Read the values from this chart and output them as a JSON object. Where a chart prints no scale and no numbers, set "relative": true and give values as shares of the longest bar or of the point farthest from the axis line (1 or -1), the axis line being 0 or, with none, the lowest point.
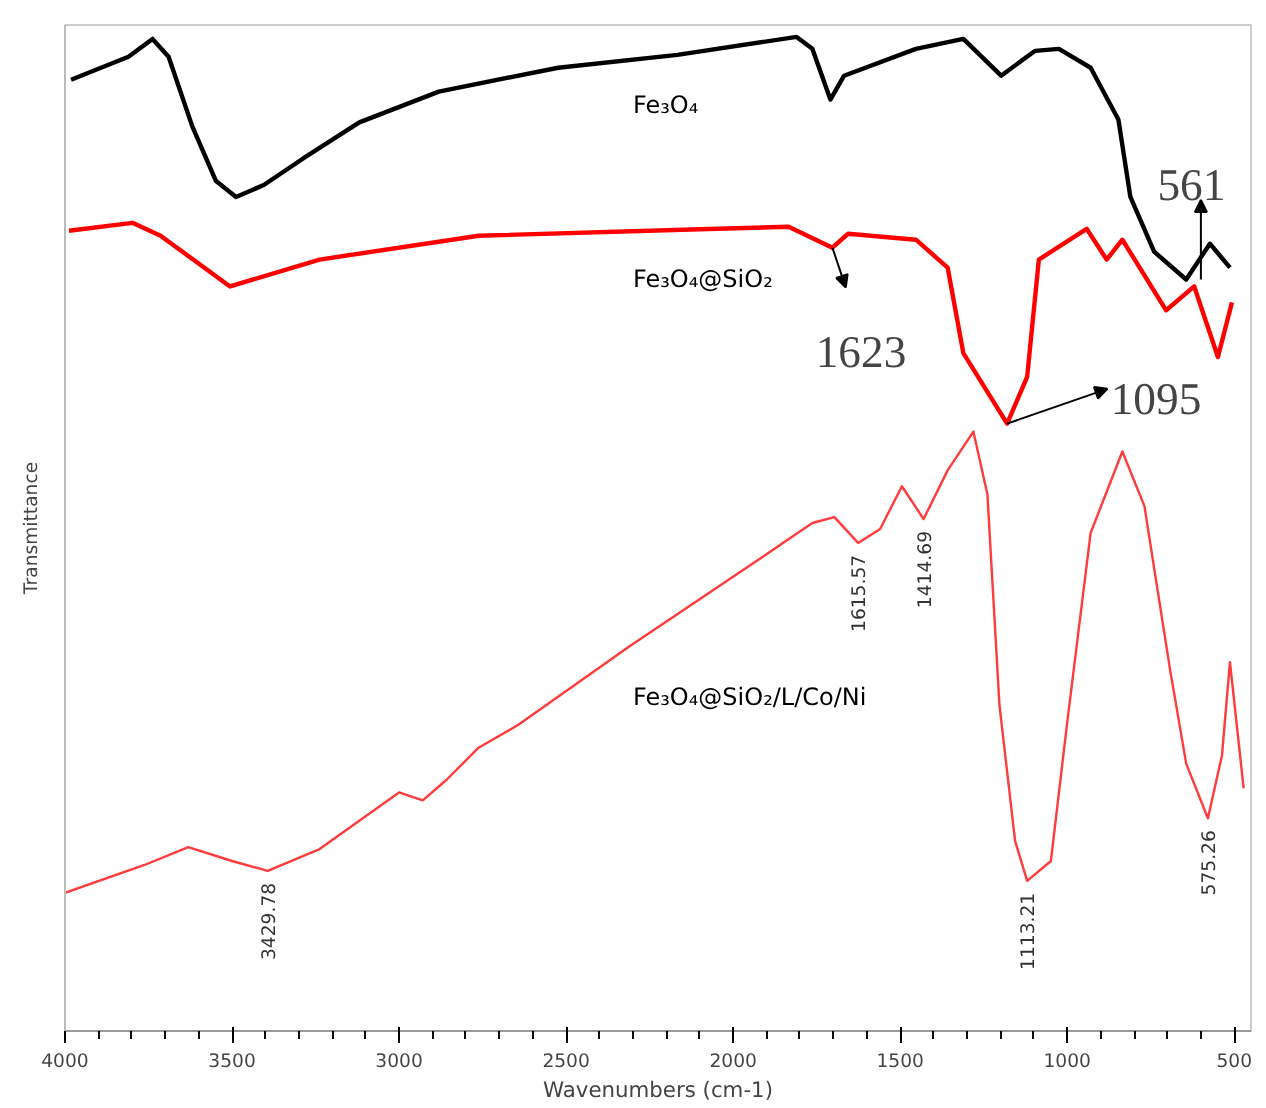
{
  "chart_data": {
    "type": "line",
    "xlabel": "Wavenumbers (cm-1)",
    "ylabel": "Transmittance",
    "relative": true,
    "grid": false,
    "xlim": [
      4000,
      450
    ],
    "xticks": [
      4000,
      3500,
      3000,
      2500,
      2000,
      1500,
      1000,
      500
    ],
    "series": [
      {
        "name": "Fe₃O₄",
        "color": "#000000",
        "x": [
          3982,
          3810,
          3738,
          3690,
          3619,
          3548,
          3488,
          3405,
          3286,
          3119,
          2881,
          2524,
          2167,
          1810,
          1763,
          1709,
          1668,
          1453,
          1311,
          1198,
          1096,
          1025,
          930,
          847,
          811,
          740,
          644,
          573,
          513
        ],
        "values": [
          0.957,
          0.98,
          0.998,
          0.98,
          0.91,
          0.855,
          0.839,
          0.851,
          0.878,
          0.914,
          0.945,
          0.969,
          0.982,
          1.0,
          0.988,
          0.937,
          0.961,
          0.988,
          0.998,
          0.961,
          0.986,
          0.988,
          0.969,
          0.917,
          0.839,
          0.784,
          0.756,
          0.792,
          0.768
        ]
      },
      {
        "name": "Fe₃O₄@SiO₂",
        "color": "#ff0000",
        "x": [
          3988,
          3798,
          3714,
          3506,
          3238,
          2762,
          2048,
          1834,
          1703,
          1656,
          1453,
          1358,
          1311,
          1180,
          1120,
          1085,
          942,
          882,
          835,
          704,
          620,
          549,
          507
        ],
        "values": [
          0.805,
          0.813,
          0.8,
          0.749,
          0.776,
          0.8,
          0.807,
          0.809,
          0.788,
          0.802,
          0.796,
          0.768,
          0.682,
          0.611,
          0.658,
          0.776,
          0.807,
          0.776,
          0.796,
          0.725,
          0.749,
          0.678,
          0.733
        ]
      },
      {
        "name": "Fe₃O₄@SiO₂/L/Co/Ni",
        "color": "#ff3b3b",
        "x": [
          4000,
          3762,
          3631,
          3500,
          3393,
          3238,
          3000,
          2929,
          2857,
          2762,
          2643,
          2310,
          1929,
          1763,
          1697,
          1626,
          1560,
          1495,
          1430,
          1358,
          1281,
          1239,
          1203,
          1156,
          1120,
          1049,
          1001,
          930,
          835,
          769,
          692,
          644,
          579,
          537,
          513,
          472
        ],
        "values": [
          0.139,
          0.167,
          0.185,
          0.171,
          0.161,
          0.183,
          0.24,
          0.232,
          0.253,
          0.285,
          0.308,
          0.387,
          0.473,
          0.511,
          0.517,
          0.491,
          0.505,
          0.548,
          0.515,
          0.564,
          0.603,
          0.54,
          0.328,
          0.191,
          0.151,
          0.171,
          0.308,
          0.501,
          0.583,
          0.528,
          0.363,
          0.269,
          0.214,
          0.277,
          0.371,
          0.244
        ]
      }
    ],
    "annotations": [
      {
        "text": "561",
        "x": 600,
        "y": 0.756
      },
      {
        "text": "1623",
        "x": 1703,
        "y": 0.788
      },
      {
        "text": "1095",
        "x": 1180,
        "y": 0.611
      },
      {
        "text": "1615.57",
        "x": 1626,
        "y": 0.491
      },
      {
        "text": "1414.69",
        "x": 1430,
        "y": 0.515
      },
      {
        "text": "3429.78",
        "x": 3393,
        "y": 0.161
      },
      {
        "text": "1113.21",
        "x": 1120,
        "y": 0.151
      },
      {
        "text": "575.26",
        "x": 579,
        "y": 0.214
      }
    ]
  }
}
